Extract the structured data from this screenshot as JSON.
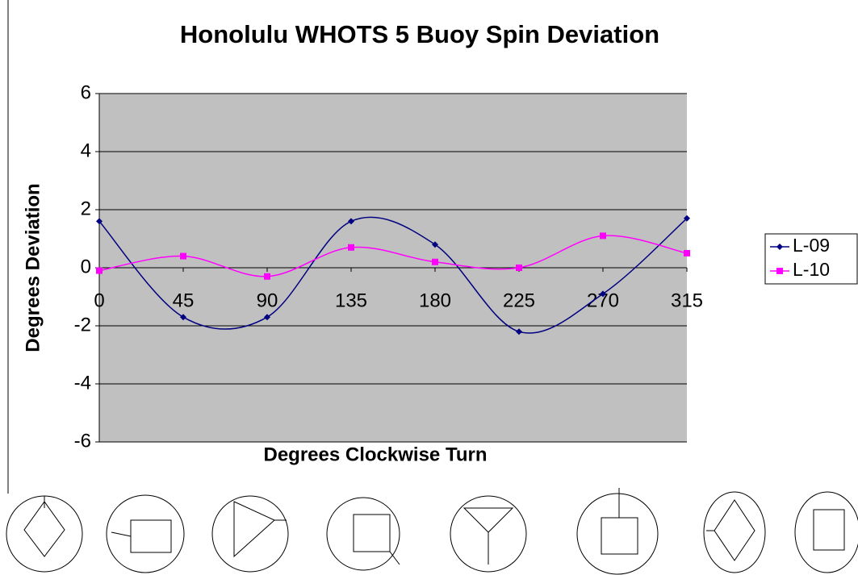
{
  "chart_data": {
    "type": "line",
    "title": "Honolulu WHOTS 5 Buoy Spin Deviation",
    "x_label": "Degrees Clockwise Turn",
    "y_label": "Degrees Deviation",
    "x": [
      0,
      45,
      90,
      135,
      180,
      225,
      270,
      315
    ],
    "xlim": [
      0,
      315
    ],
    "xticks": [
      0,
      45,
      90,
      135,
      180,
      225,
      270,
      315
    ],
    "ylim": [
      -6,
      6
    ],
    "yticks": [
      -6,
      -4,
      -2,
      0,
      2,
      4,
      6
    ],
    "grid": true,
    "smooth": true,
    "legend": "right",
    "series": [
      {
        "name": "L-09",
        "color": "#000080",
        "marker": "diamond",
        "values": [
          1.6,
          -1.7,
          -1.7,
          1.6,
          0.8,
          -2.2,
          -0.9,
          1.7
        ]
      },
      {
        "name": "L-10",
        "color": "#ff00ff",
        "marker": "square",
        "values": [
          -0.1,
          0.4,
          -0.3,
          0.7,
          0.2,
          0.0,
          1.1,
          0.5
        ]
      }
    ]
  }
}
